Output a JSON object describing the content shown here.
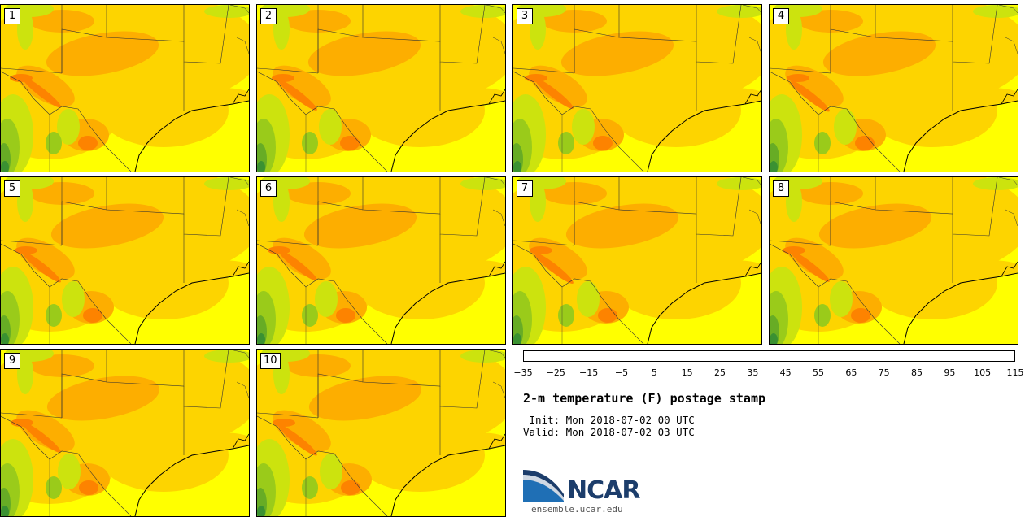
{
  "panels": [
    {
      "label": "1"
    },
    {
      "label": "2"
    },
    {
      "label": "3"
    },
    {
      "label": "4"
    },
    {
      "label": "5"
    },
    {
      "label": "6"
    },
    {
      "label": "7"
    },
    {
      "label": "8"
    },
    {
      "label": "9"
    },
    {
      "label": "10"
    }
  ],
  "colorbar": {
    "colors": [
      "#dfe3ea",
      "#b7bcc5",
      "#8d949f",
      "#646d7b",
      "#3c475a",
      "#1f2c44",
      "#0b1a32",
      "#1f344a",
      "#334a5d",
      "#4a6576",
      "#5f818d",
      "#73a0a6",
      "#88bfbd",
      "#96dfd2",
      "#82cfae",
      "#6dbf8a",
      "#4ba34b",
      "#3a9132",
      "#67ac25",
      "#9acb1a",
      "#cce30e",
      "#fcfc00",
      "#fdd400",
      "#fdae00",
      "#fd8300",
      "#f55a00",
      "#dc3500",
      "#bd2000",
      "#9c1800",
      "#7b1000"
    ],
    "tick_labels": [
      "-35",
      "-25",
      "-15",
      "-5",
      "5",
      "15",
      "25",
      "35",
      "45",
      "55",
      "65",
      "75",
      "85",
      "95",
      "105",
      "115"
    ]
  },
  "title": "2-m temperature (F) postage stamp",
  "init": " Init: Mon 2018-07-02 00 UTC",
  "valid": "Valid: Mon 2018-07-02 03 UTC",
  "logo": {
    "name": "NCAR",
    "url": "ensemble.ucar.edu"
  },
  "map_colors": {
    "base": "#ffff00",
    "warm": "#fdd400",
    "hot": "#fdae00",
    "hotter": "#fd8300",
    "cool": "#cce30e",
    "cooler": "#9acb1a",
    "coolest": "#67ac25",
    "green": "#3a9132"
  }
}
